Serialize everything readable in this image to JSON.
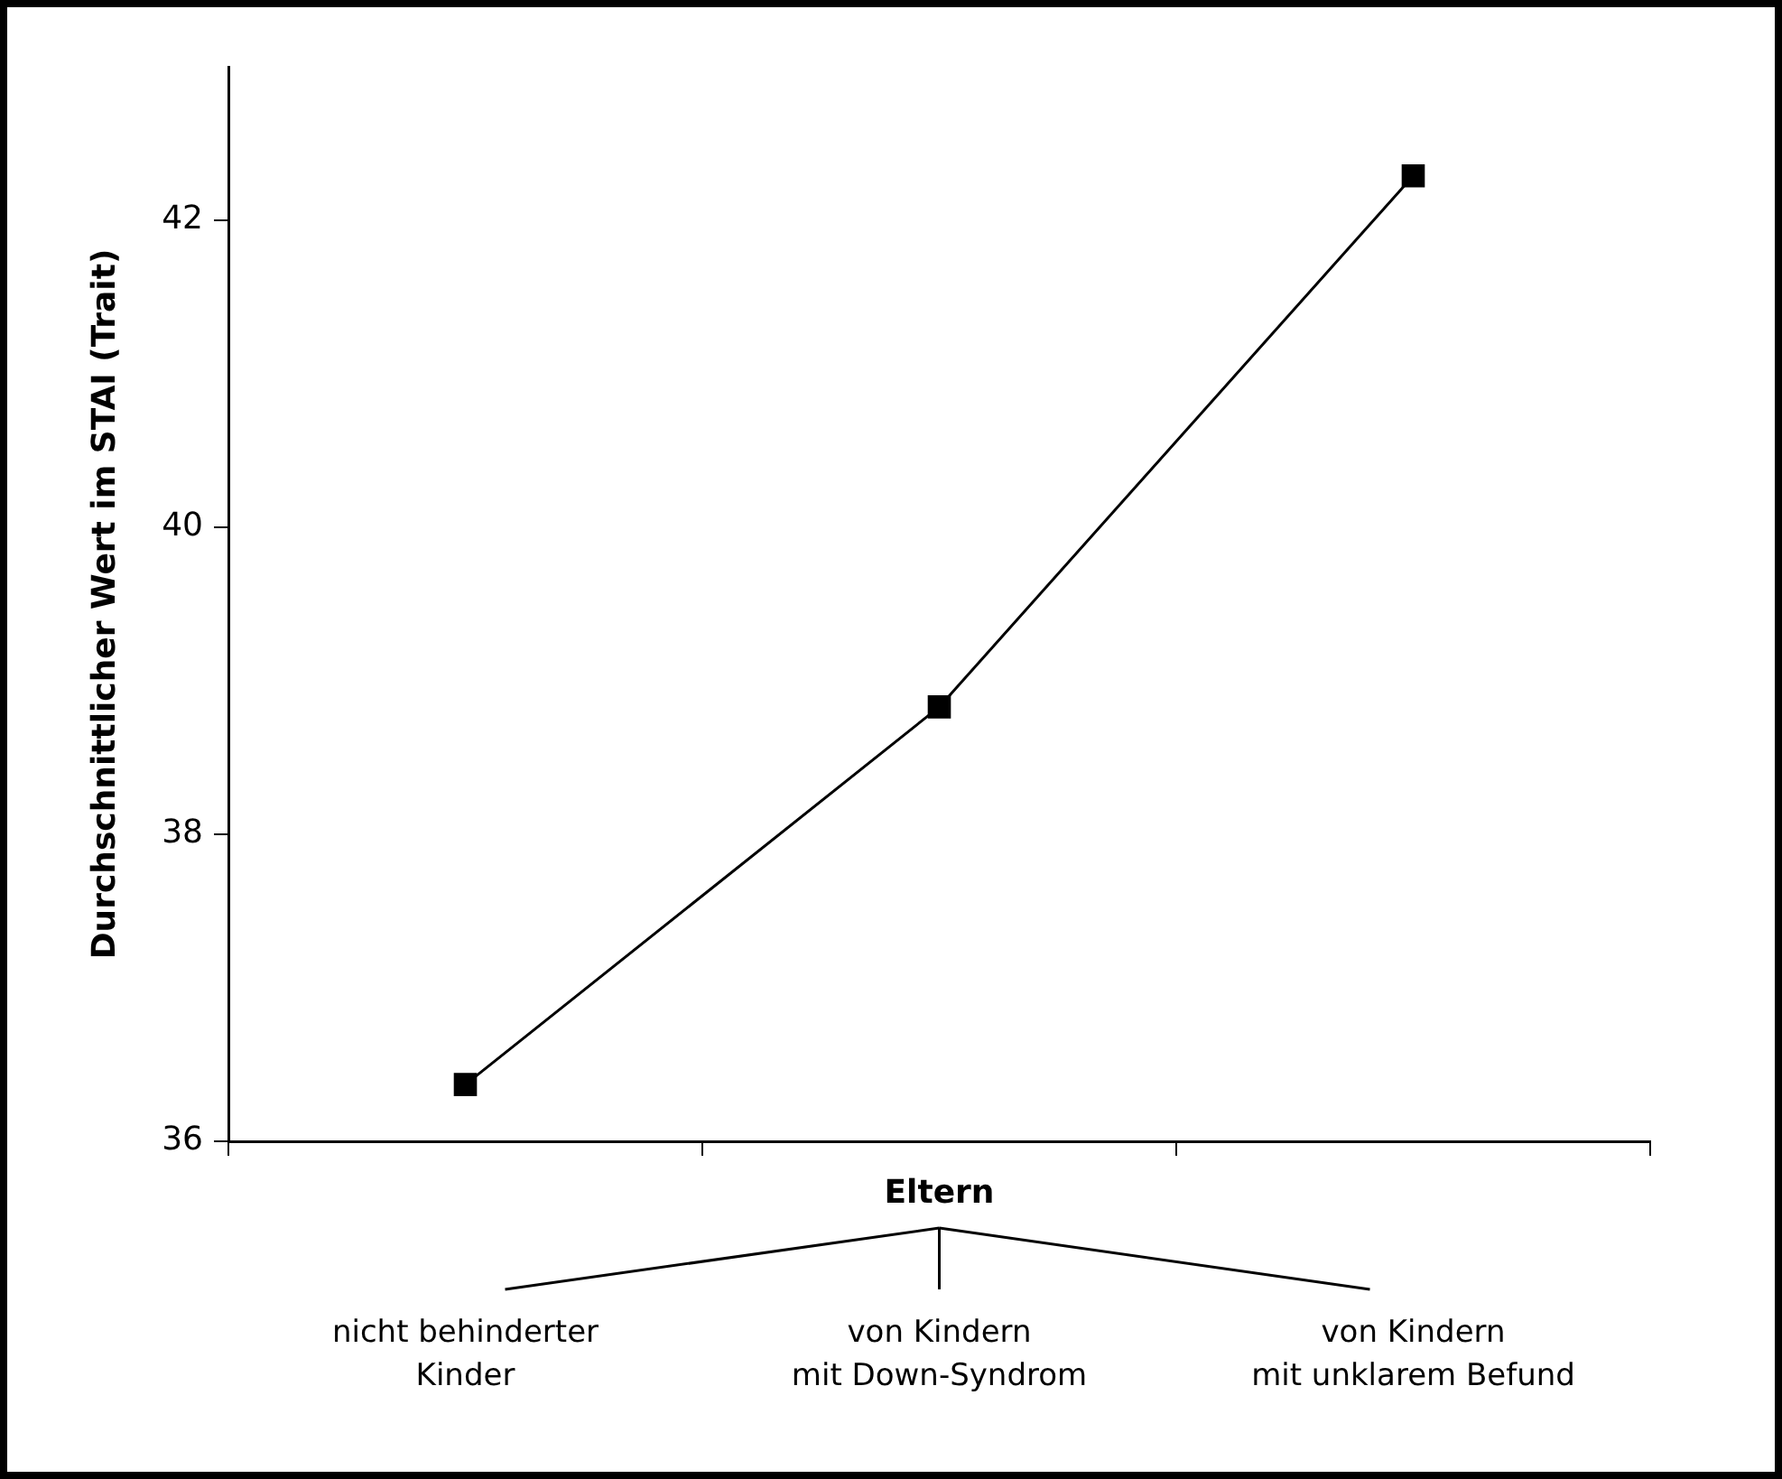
{
  "chart_data": {
    "type": "line",
    "ylabel": "Durchschnittlicher Wert im STAI (Trait)",
    "xlabel": "Eltern",
    "categories": [
      "nicht behinderter\nKinder",
      "von Kindern\nmit Down-Syndrom",
      "von Kindern\nmit unklarem Befund"
    ],
    "series": [
      {
        "color": "#000000",
        "values": [
          36.37,
          38.83,
          42.29
        ]
      }
    ],
    "ylim": [
      36,
      43
    ],
    "yticks": [
      36,
      38,
      40,
      42
    ],
    "grid": false,
    "legend": false,
    "marker": "square",
    "line_style": "solid"
  }
}
